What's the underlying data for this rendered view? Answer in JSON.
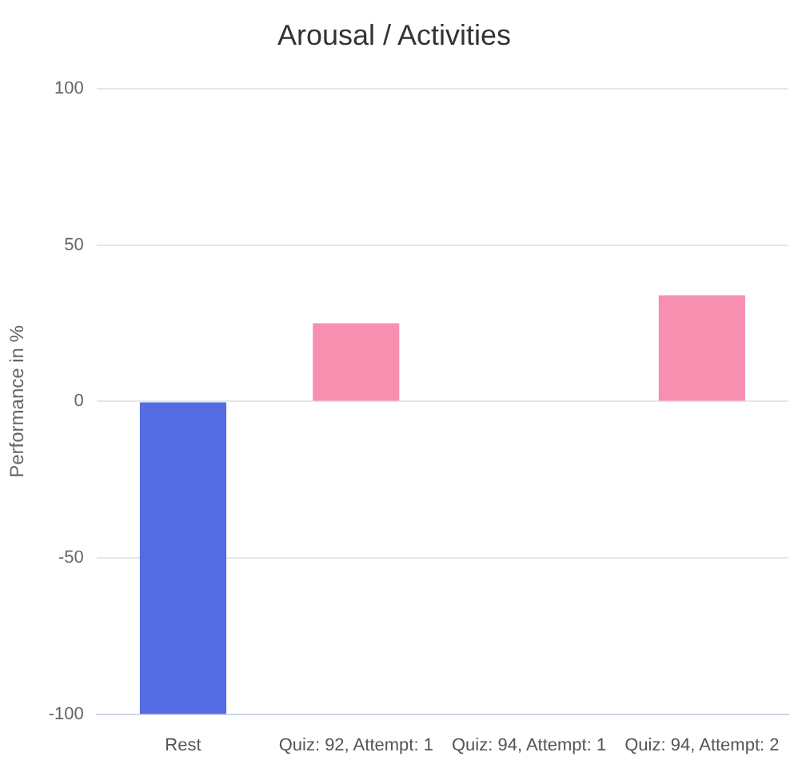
{
  "chart_data": {
    "type": "bar",
    "title": "Arousal / Activities",
    "ylabel": "Performance in %",
    "categories": [
      "Rest",
      "Quiz: 92, Attempt: 1",
      "Quiz: 94, Attempt: 1",
      "Quiz: 94, Attempt: 2"
    ],
    "values": [
      -100,
      25,
      0,
      34
    ],
    "colors": [
      "#536be3",
      "#f78fb0",
      "#f78fb0",
      "#f78fb0"
    ],
    "ylim": [
      -100,
      100
    ],
    "yticks": [
      -100,
      -50,
      0,
      50,
      100
    ],
    "grid": "y",
    "legend": false
  }
}
